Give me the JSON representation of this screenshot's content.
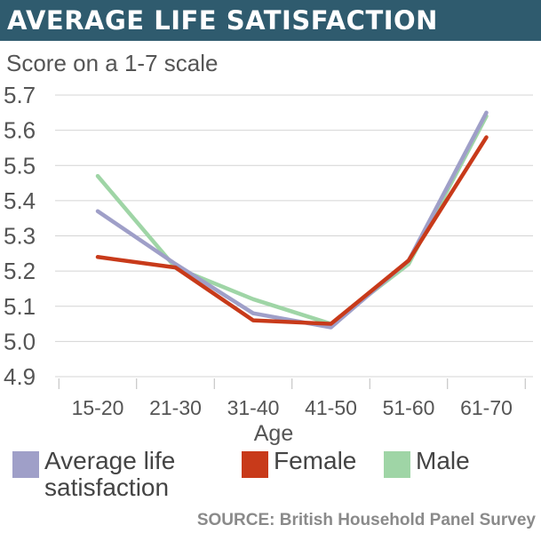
{
  "header": {
    "title": "AVERAGE LIFE SATISFACTION"
  },
  "subtitle": "Score on a 1-7 scale",
  "source": "SOURCE: British Household Panel Survey",
  "legend": [
    {
      "name": "avg",
      "label_lines": [
        "Average life",
        "satisfaction"
      ],
      "color": "#9f9fc8"
    },
    {
      "name": "female",
      "label_lines": [
        "Female"
      ],
      "color": "#c83a1a"
    },
    {
      "name": "male",
      "label_lines": [
        "Male"
      ],
      "color": "#9fd5a6"
    }
  ],
  "chart_data": {
    "type": "line",
    "title": "AVERAGE LIFE SATISFACTION",
    "subtitle": "Score on a 1-7 scale",
    "xlabel": "Age",
    "ylabel": "",
    "categories": [
      "15-20",
      "21-30",
      "31-40",
      "41-50",
      "51-60",
      "61-70"
    ],
    "ylim": [
      4.9,
      5.7
    ],
    "yticks": [
      "5.7",
      "5.6",
      "5.5",
      "5.4",
      "5.3",
      "5.2",
      "5.1",
      "5.0",
      "4.9"
    ],
    "grid": true,
    "series": [
      {
        "name": "Male",
        "color": "#9fd5a6",
        "values": [
          5.47,
          5.21,
          5.12,
          5.05,
          5.22,
          5.64
        ]
      },
      {
        "name": "Average life satisfaction",
        "color": "#9f9fc8",
        "values": [
          5.37,
          5.22,
          5.08,
          5.04,
          5.23,
          5.65
        ]
      },
      {
        "name": "Female",
        "color": "#c83a1a",
        "values": [
          5.24,
          5.21,
          5.06,
          5.05,
          5.23,
          5.58
        ]
      }
    ]
  }
}
